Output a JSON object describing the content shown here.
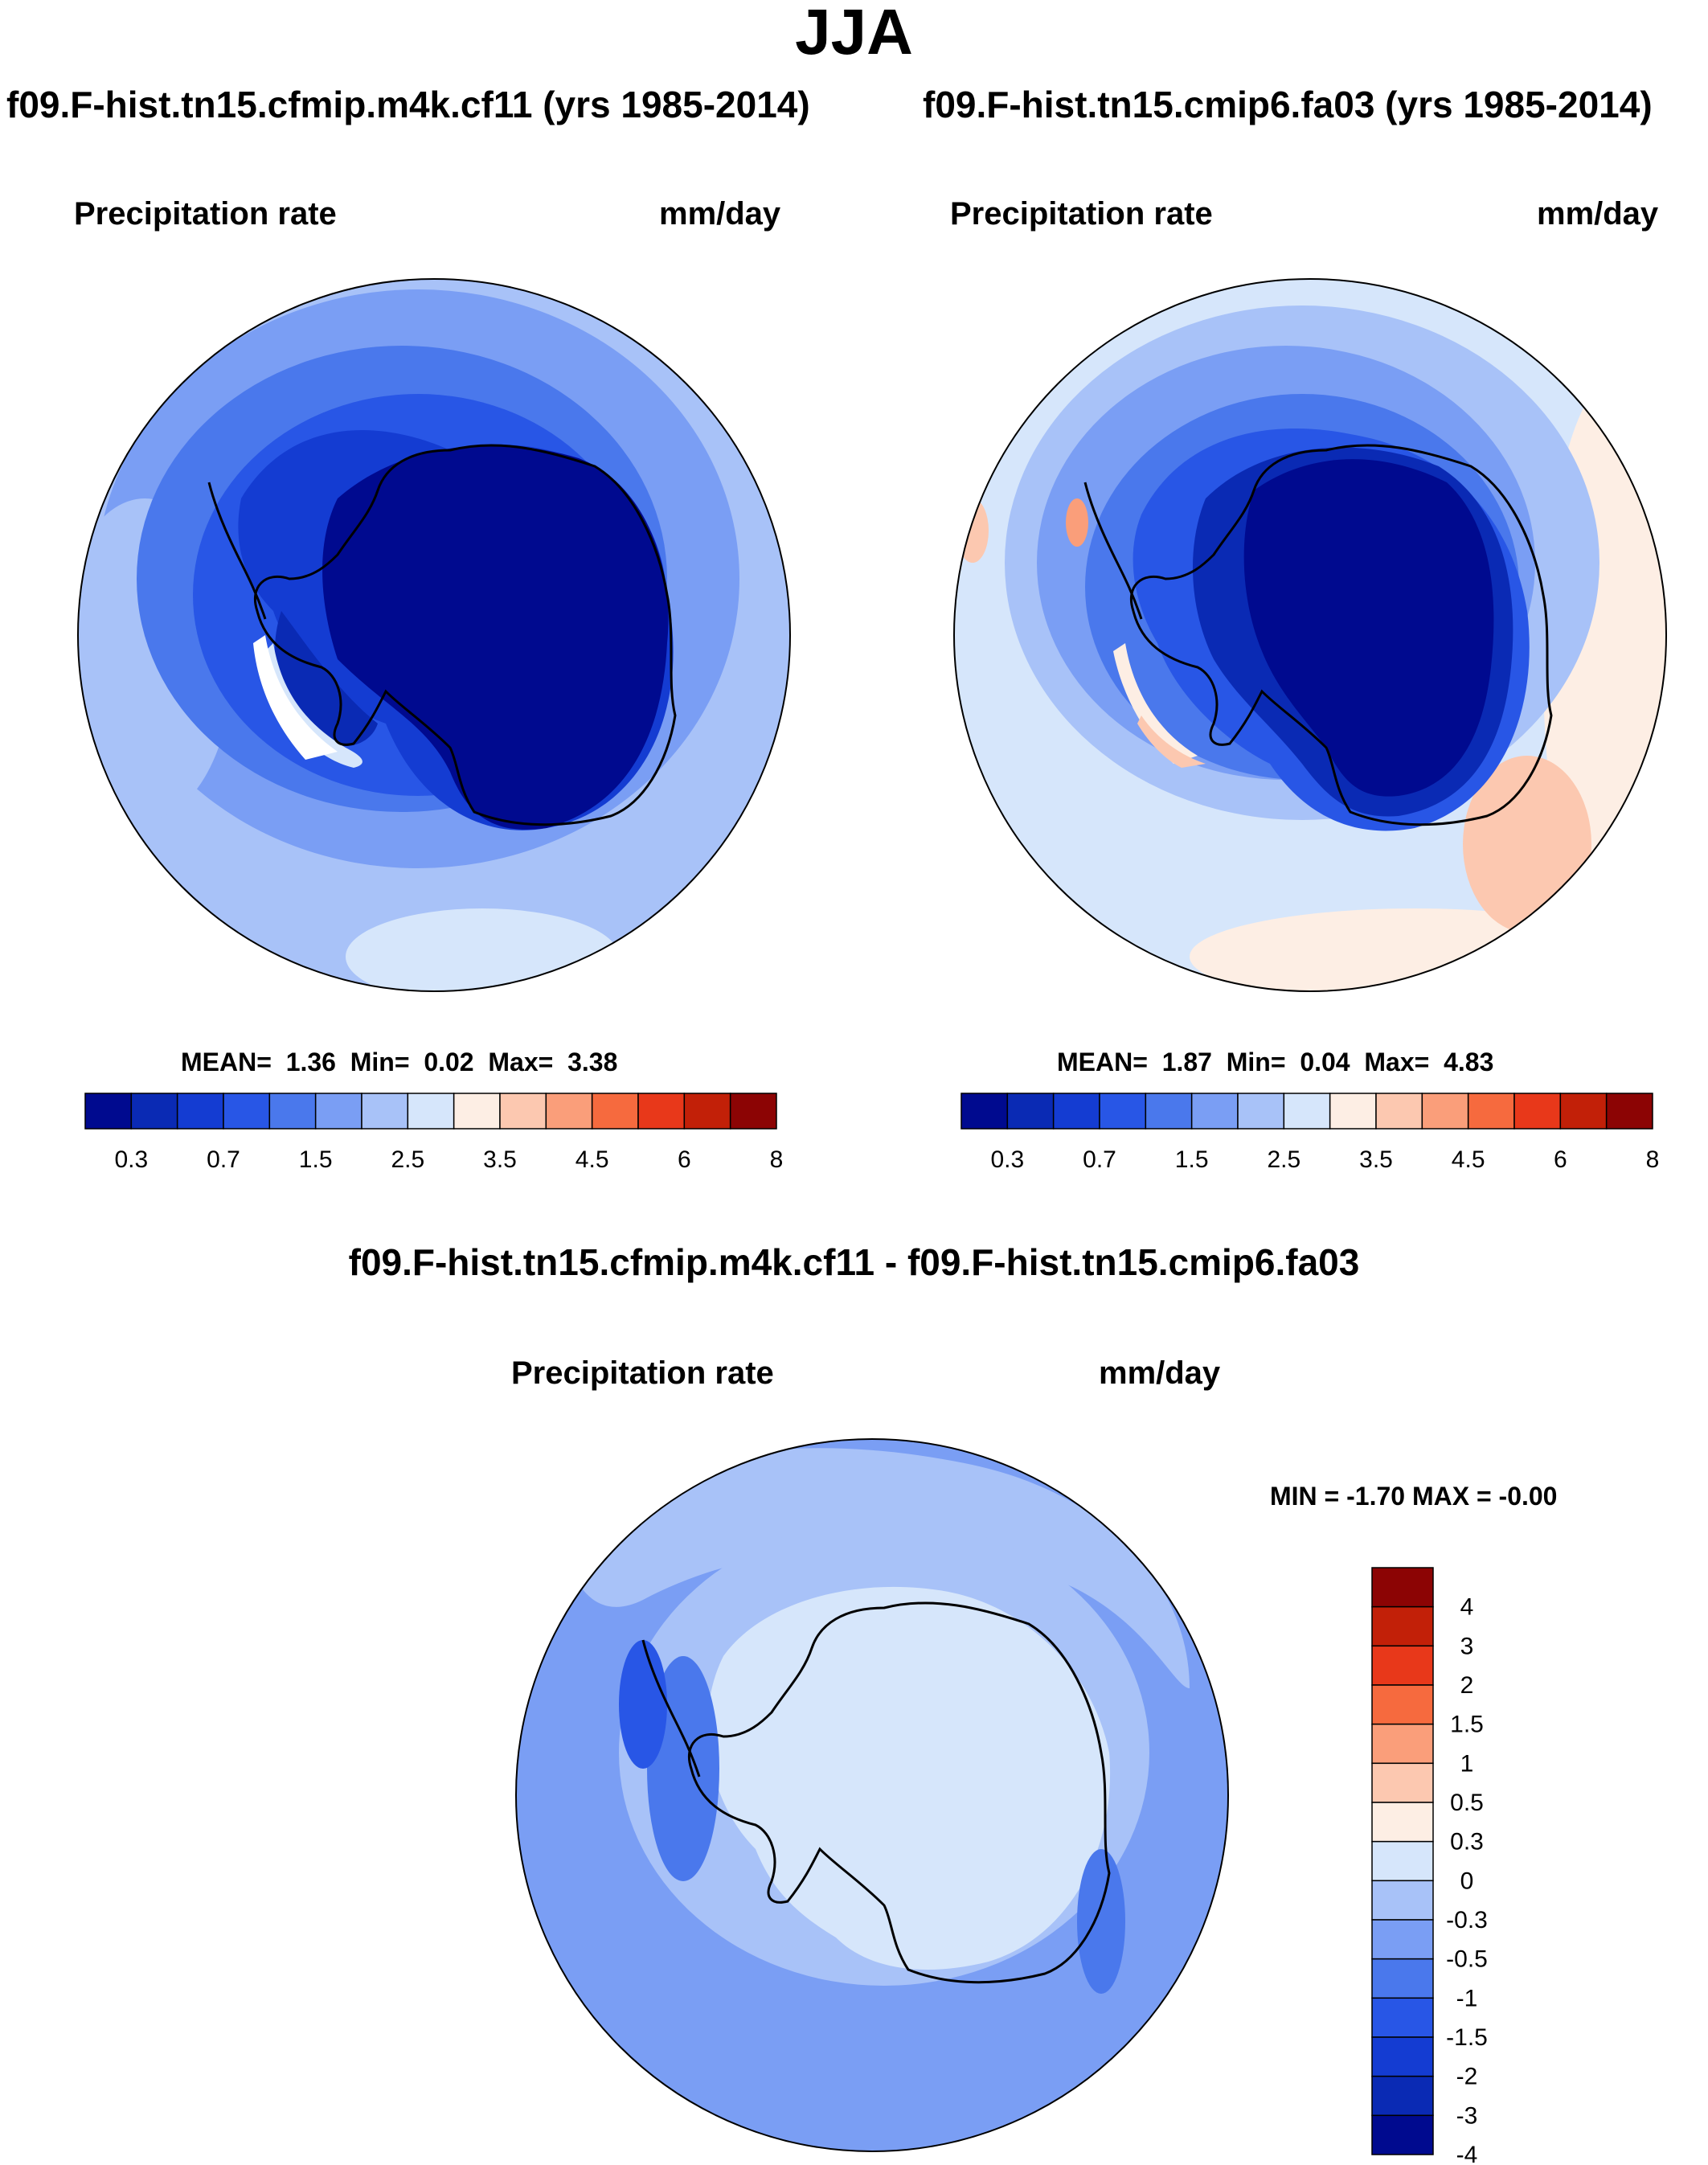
{
  "season": "JJA",
  "panels": [
    {
      "case_title": "f09.F-hist.tn15.cfmip.m4k.cf11 (yrs 1985-2014)",
      "left_label": "Precipitation rate",
      "right_label": "mm/day",
      "stats": {
        "mean_label": "MEAN=",
        "mean": "1.36",
        "min_label": "Min=",
        "min": "0.02",
        "max_label": "Max=",
        "max": "3.38"
      }
    },
    {
      "case_title": "f09.F-hist.tn15.cmip6.fa03 (yrs 1985-2014)",
      "left_label": "Precipitation rate",
      "right_label": "mm/day",
      "stats": {
        "mean_label": "MEAN=",
        "mean": "1.87",
        "min_label": "Min=",
        "min": "0.04",
        "max_label": "Max=",
        "max": "4.83"
      }
    }
  ],
  "diff_panel": {
    "title": "f09.F-hist.tn15.cfmip.m4k.cf11 - f09.F-hist.tn15.cmip6.fa03",
    "left_label": "Precipitation rate",
    "right_label": "mm/day",
    "minmax": {
      "min_label": "MIN =",
      "min": "-1.70",
      "max_label": "MAX =",
      "max": "-0.00"
    }
  },
  "chart_data": [
    {
      "type": "heatmap",
      "projection": "south-polar-stereographic",
      "title": "f09.F-hist.tn15.cfmip.m4k.cf11 (yrs 1985-2014)",
      "variable": "Precipitation rate",
      "units": "mm/day",
      "mean": 1.36,
      "min": 0.02,
      "max": 3.38,
      "colorbar": {
        "orientation": "horizontal",
        "tick_labels": [
          "0.3",
          "0.7",
          "1.5",
          "2.5",
          "3.5",
          "4.5",
          "6",
          "8"
        ],
        "colors": [
          "#000a8f",
          "#0a2ab4",
          "#143cd2",
          "#2856e6",
          "#4a78ec",
          "#7a9ef4",
          "#a8c2f8",
          "#d6e6fb",
          "#fdeee4",
          "#fcc8b0",
          "#fa9e7a",
          "#f66a3e",
          "#e8381a",
          "#c22008",
          "#8c0404"
        ]
      }
    },
    {
      "type": "heatmap",
      "projection": "south-polar-stereographic",
      "title": "f09.F-hist.tn15.cmip6.fa03 (yrs 1985-2014)",
      "variable": "Precipitation rate",
      "units": "mm/day",
      "mean": 1.87,
      "min": 0.04,
      "max": 4.83,
      "colorbar": {
        "orientation": "horizontal",
        "tick_labels": [
          "0.3",
          "0.7",
          "1.5",
          "2.5",
          "3.5",
          "4.5",
          "6",
          "8"
        ],
        "colors": [
          "#000a8f",
          "#0a2ab4",
          "#143cd2",
          "#2856e6",
          "#4a78ec",
          "#7a9ef4",
          "#a8c2f8",
          "#d6e6fb",
          "#fdeee4",
          "#fcc8b0",
          "#fa9e7a",
          "#f66a3e",
          "#e8381a",
          "#c22008",
          "#8c0404"
        ]
      }
    },
    {
      "type": "heatmap",
      "projection": "south-polar-stereographic",
      "title": "f09.F-hist.tn15.cfmip.m4k.cf11 - f09.F-hist.tn15.cmip6.fa03",
      "variable": "Precipitation rate",
      "units": "mm/day",
      "min": -1.7,
      "max": -0.0,
      "colorbar": {
        "orientation": "vertical",
        "tick_labels": [
          "4",
          "3",
          "2",
          "1.5",
          "1",
          "0.5",
          "0.3",
          "0",
          "-0.3",
          "-0.5",
          "-1",
          "-1.5",
          "-2",
          "-3",
          "-4"
        ],
        "colors": [
          "#8c0404",
          "#c22008",
          "#e8381a",
          "#f66a3e",
          "#fa9e7a",
          "#fcc8b0",
          "#fdeee4",
          "#d6e6fb",
          "#a8c2f8",
          "#7a9ef4",
          "#4a78ec",
          "#2856e6",
          "#143cd2",
          "#0a2ab4",
          "#000a8f"
        ]
      }
    }
  ]
}
